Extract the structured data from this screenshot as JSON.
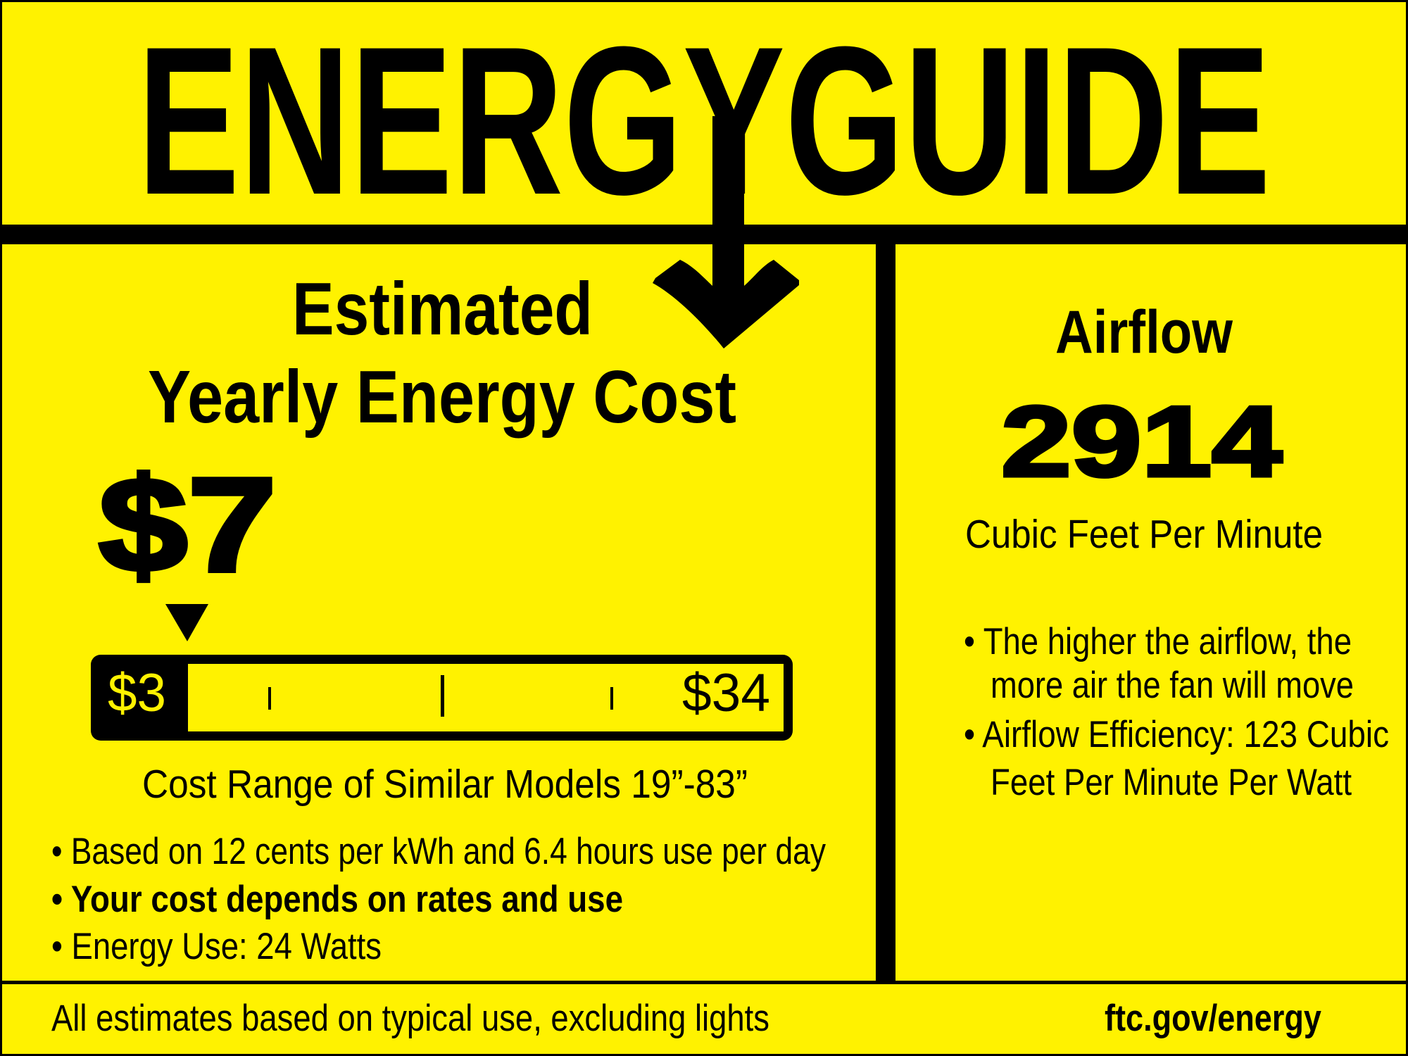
{
  "colors": {
    "background": "#fff200",
    "ink": "#000000"
  },
  "title": "ENERGYGUIDE",
  "cost_panel": {
    "heading_line1": "Estimated",
    "heading_line2": "Yearly Energy Cost",
    "cost": "$7",
    "indicator_icon": "down-triangle-icon",
    "scale": {
      "min_label": "$3",
      "max_label": "$34",
      "min": 3,
      "max": 34,
      "value": 7
    },
    "range_caption": "Cost Range of Similar Models 19”-83”",
    "bullets": [
      "• Based on 12 cents per kWh and 6.4 hours use per day",
      "• Your cost depends on rates and use",
      "• Energy Use: 24 Watts"
    ]
  },
  "airflow_panel": {
    "heading": "Airflow",
    "value": "2914",
    "unit": "Cubic Feet Per Minute",
    "bullet_lines": [
      "• The higher the airflow, the",
      "more air the fan will move",
      "• Airflow Efficiency: 123 Cubic",
      "Feet Per Minute Per Watt"
    ]
  },
  "footer": {
    "note": "All estimates based on typical use, excluding lights",
    "url": "ftc.gov/energy"
  }
}
